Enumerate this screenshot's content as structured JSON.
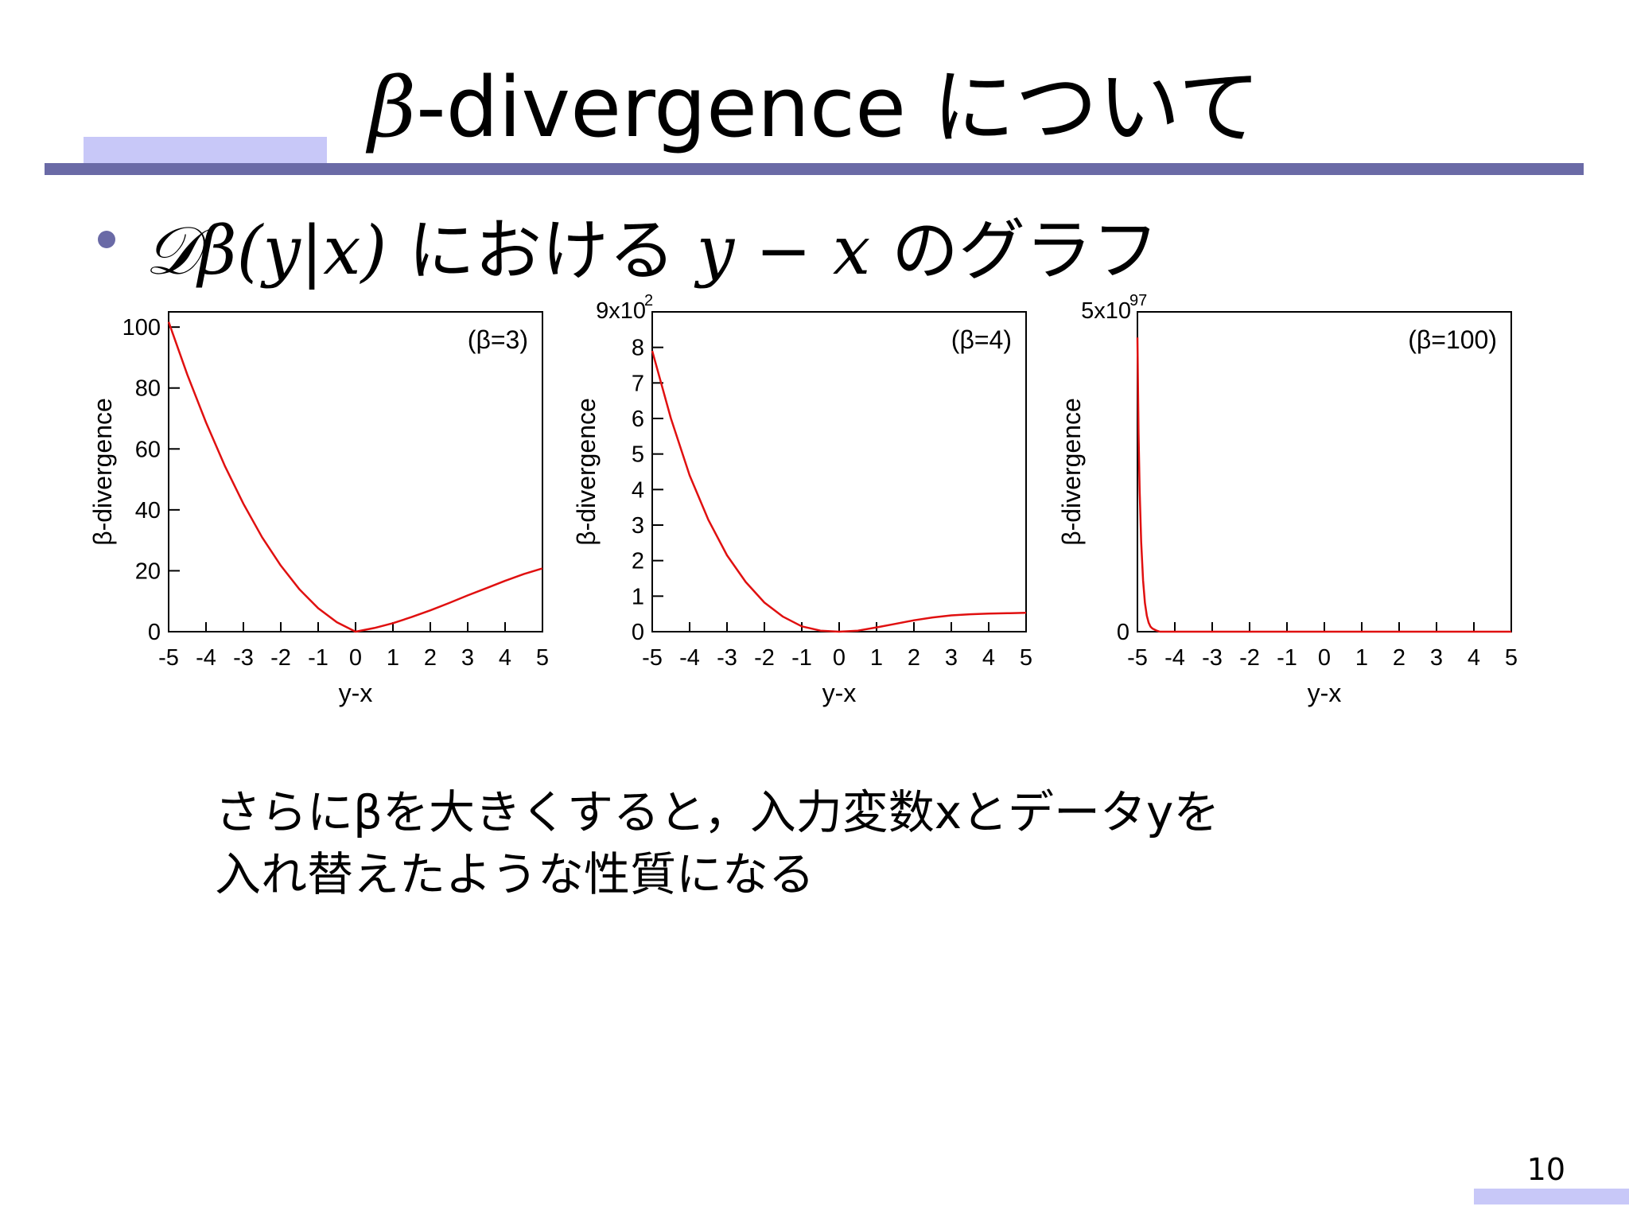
{
  "slide": {
    "title_symbol": "β",
    "title_text": "-divergence について",
    "bullet_math": "𝒟β(y|x)",
    "bullet_mid": " における ",
    "bullet_math2": "y − x",
    "bullet_tail": " のグラフ",
    "note_line1": "さらにβを大きくすると，入力変数xとデータyを",
    "note_line2": "入れ替えたような性質になる",
    "page_number": "10"
  },
  "colors": {
    "accent": "#c8c8f8",
    "rule": "#6a6aa6",
    "bullet": "#6a6aa6",
    "curve": "#e01010"
  },
  "chart_data": [
    {
      "type": "line",
      "annotation": "(β=3)",
      "xlabel": "y-x",
      "ylabel": "β-divergence",
      "xlim": [
        -5,
        5
      ],
      "ylim": [
        0,
        105
      ],
      "xticks": [
        -5,
        -4,
        -3,
        -2,
        -1,
        0,
        1,
        2,
        3,
        4,
        5
      ],
      "xtick_labels": [
        "-5",
        "-4",
        "-3",
        "-2",
        "-1",
        "0",
        "1",
        "2",
        "3",
        "4",
        "5"
      ],
      "yticks": [
        0,
        20,
        40,
        60,
        80,
        100
      ],
      "ytick_labels": [
        "0",
        "20",
        "40",
        "60",
        "80",
        "100"
      ],
      "series": [
        {
          "x": [
            -5,
            -4.5,
            -4,
            -3.5,
            -3,
            -2.5,
            -2,
            -1.5,
            -1,
            -0.5,
            0,
            0.5,
            1,
            1.5,
            2,
            2.5,
            3,
            3.5,
            4,
            4.5,
            5
          ],
          "y": [
            101.7,
            84.4,
            68.7,
            54.5,
            42,
            31,
            21.7,
            13.9,
            7.7,
            3.1,
            0,
            1.2,
            2.8,
            4.8,
            7,
            9.4,
            11.9,
            14.3,
            16.7,
            18.9,
            20.8
          ]
        }
      ]
    },
    {
      "type": "line",
      "annotation": "(β=4)",
      "xlabel": "y-x",
      "ylabel": "β-divergence",
      "scale_label": "9x10",
      "scale_exponent": "2",
      "xlim": [
        -5,
        5
      ],
      "ylim": [
        0,
        900
      ],
      "xticks": [
        -5,
        -4,
        -3,
        -2,
        -1,
        0,
        1,
        2,
        3,
        4,
        5
      ],
      "xtick_labels": [
        "-5",
        "-4",
        "-3",
        "-2",
        "-1",
        "0",
        "1",
        "2",
        "3",
        "4",
        "5"
      ],
      "yticks": [
        0,
        100,
        200,
        300,
        400,
        500,
        600,
        700,
        800
      ],
      "ytick_labels": [
        "0",
        "1",
        "2",
        "3",
        "4",
        "5",
        "6",
        "7",
        "8"
      ],
      "series": [
        {
          "x": [
            -5,
            -4.5,
            -4,
            -3.5,
            -3,
            -2.5,
            -2,
            -1.5,
            -1,
            -0.5,
            0,
            0.5,
            1,
            1.5,
            2,
            2.5,
            3,
            3.5,
            4,
            4.5,
            5
          ],
          "y": [
            790,
            600,
            440,
            315,
            215,
            140,
            82,
            42,
            15,
            3,
            0,
            3,
            12,
            22,
            32,
            40,
            46,
            49,
            51,
            52,
            53
          ]
        }
      ]
    },
    {
      "type": "line",
      "annotation": "(β=100)",
      "xlabel": "y-x",
      "ylabel": "β-divergence",
      "scale_label": "5x10",
      "scale_exponent": "97",
      "xlim": [
        -5,
        5
      ],
      "ylim": [
        0,
        5
      ],
      "xticks": [
        -5,
        -4,
        -3,
        -2,
        -1,
        0,
        1,
        2,
        3,
        4,
        5
      ],
      "xtick_labels": [
        "-5",
        "-4",
        "-3",
        "-2",
        "-1",
        "0",
        "1",
        "2",
        "3",
        "4",
        "5"
      ],
      "yticks": [
        0
      ],
      "ytick_labels": [
        "0"
      ],
      "series": [
        {
          "x": [
            -5,
            -4.97,
            -4.94,
            -4.9,
            -4.85,
            -4.8,
            -4.75,
            -4.7,
            -4.65,
            -4.6,
            -4.5,
            -4.4,
            0,
            5
          ],
          "y": [
            4.6,
            3.1,
            2.2,
            1.4,
            0.8,
            0.45,
            0.25,
            0.14,
            0.08,
            0.05,
            0.02,
            0,
            0,
            0
          ]
        }
      ]
    }
  ]
}
